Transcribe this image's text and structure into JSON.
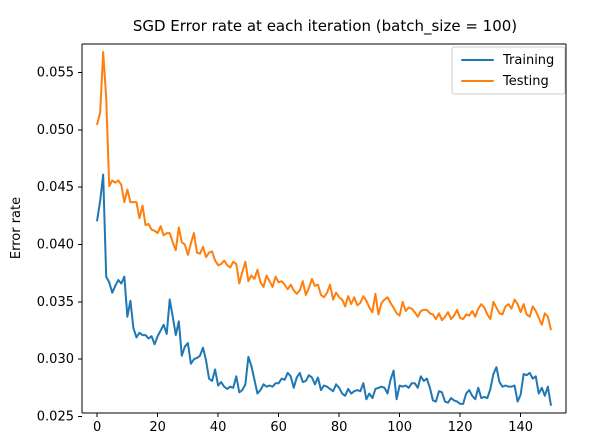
{
  "chart_data": {
    "type": "line",
    "title": "SGD Error rate at each iteration (batch_size = 100)",
    "xlabel": "",
    "ylabel": "Error rate",
    "xlim": [
      -5,
      155
    ],
    "ylim": [
      0.0253,
      0.0575
    ],
    "xticks": [
      0,
      20,
      40,
      60,
      80,
      100,
      120,
      140
    ],
    "yticks": [
      0.025,
      0.03,
      0.035,
      0.04,
      0.045,
      0.05,
      0.055
    ],
    "xtick_labels": [
      "0",
      "20",
      "40",
      "60",
      "80",
      "100",
      "120",
      "140"
    ],
    "ytick_labels": [
      "0.025",
      "0.030",
      "0.035",
      "0.040",
      "0.045",
      "0.050",
      "0.055"
    ],
    "grid": false,
    "legend_position": "top-right",
    "x": [
      0,
      1,
      2,
      3,
      4,
      5,
      6,
      7,
      8,
      9,
      10,
      11,
      12,
      13,
      14,
      15,
      16,
      17,
      18,
      19,
      20,
      21,
      22,
      23,
      24,
      25,
      26,
      27,
      28,
      29,
      30,
      31,
      32,
      33,
      34,
      35,
      36,
      37,
      38,
      39,
      40,
      41,
      42,
      43,
      44,
      45,
      46,
      47,
      48,
      49,
      50,
      51,
      52,
      53,
      54,
      55,
      56,
      57,
      58,
      59,
      60,
      61,
      62,
      63,
      64,
      65,
      66,
      67,
      68,
      69,
      70,
      71,
      72,
      73,
      74,
      75,
      76,
      77,
      78,
      79,
      80,
      81,
      82,
      83,
      84,
      85,
      86,
      87,
      88,
      89,
      90,
      91,
      92,
      93,
      94,
      95,
      96,
      97,
      98,
      99,
      100,
      101,
      102,
      103,
      104,
      105,
      106,
      107,
      108,
      109,
      110,
      111,
      112,
      113,
      114,
      115,
      116,
      117,
      118,
      119,
      120,
      121,
      122,
      123,
      124,
      125,
      126,
      127,
      128,
      129,
      130,
      131,
      132,
      133,
      134,
      135,
      136,
      137,
      138,
      139,
      140,
      141,
      142,
      143,
      144,
      145,
      146,
      147,
      148,
      149,
      150
    ],
    "series": [
      {
        "name": "Training",
        "color": "#1f77b4",
        "values": [
          0.0421,
          0.0438,
          0.0461,
          0.0372,
          0.0367,
          0.0358,
          0.0364,
          0.0369,
          0.0366,
          0.0372,
          0.0337,
          0.0351,
          0.0327,
          0.0319,
          0.0323,
          0.0321,
          0.0321,
          0.0318,
          0.032,
          0.0313,
          0.032,
          0.0325,
          0.033,
          0.0322,
          0.0352,
          0.0337,
          0.0321,
          0.0333,
          0.0303,
          0.0311,
          0.0314,
          0.0296,
          0.03,
          0.0301,
          0.0303,
          0.031,
          0.0299,
          0.0283,
          0.0281,
          0.0291,
          0.0277,
          0.028,
          0.0276,
          0.0274,
          0.0276,
          0.0275,
          0.0285,
          0.0271,
          0.0273,
          0.0278,
          0.0302,
          0.0294,
          0.0282,
          0.027,
          0.0273,
          0.0278,
          0.0276,
          0.0277,
          0.0276,
          0.0279,
          0.0279,
          0.0283,
          0.0282,
          0.0288,
          0.0285,
          0.0275,
          0.0284,
          0.0288,
          0.028,
          0.0281,
          0.0286,
          0.0284,
          0.0278,
          0.0284,
          0.0273,
          0.0277,
          0.0276,
          0.0274,
          0.0272,
          0.0278,
          0.0275,
          0.027,
          0.0268,
          0.0274,
          0.027,
          0.0272,
          0.0273,
          0.0272,
          0.0279,
          0.0265,
          0.027,
          0.0266,
          0.0274,
          0.0275,
          0.0276,
          0.0275,
          0.027,
          0.0282,
          0.029,
          0.0265,
          0.0277,
          0.0276,
          0.0277,
          0.0275,
          0.0279,
          0.0279,
          0.0275,
          0.0285,
          0.0281,
          0.0283,
          0.0275,
          0.0264,
          0.0263,
          0.0272,
          0.0271,
          0.0263,
          0.0262,
          0.0266,
          0.0264,
          0.0263,
          0.0261,
          0.0261,
          0.027,
          0.0273,
          0.0268,
          0.0265,
          0.0275,
          0.0266,
          0.0267,
          0.0266,
          0.0274,
          0.0287,
          0.0293,
          0.028,
          0.0276,
          0.0277,
          0.0276,
          0.0276,
          0.0277,
          0.0263,
          0.0269,
          0.0287,
          0.0286,
          0.0288,
          0.0283,
          0.0285,
          0.027,
          0.0275,
          0.0268,
          0.0276,
          0.026
        ]
      },
      {
        "name": "Testing",
        "color": "#ff7f0e",
        "values": [
          0.0505,
          0.0515,
          0.0568,
          0.0528,
          0.0451,
          0.0456,
          0.0454,
          0.0456,
          0.0452,
          0.0437,
          0.0448,
          0.0437,
          0.0437,
          0.0437,
          0.0423,
          0.0434,
          0.0417,
          0.0418,
          0.0413,
          0.0412,
          0.041,
          0.0416,
          0.0408,
          0.041,
          0.041,
          0.0402,
          0.0395,
          0.0415,
          0.0402,
          0.04,
          0.0391,
          0.0401,
          0.041,
          0.0393,
          0.0392,
          0.0398,
          0.0389,
          0.0393,
          0.0394,
          0.0386,
          0.0382,
          0.0383,
          0.0386,
          0.0382,
          0.038,
          0.0385,
          0.0383,
          0.0366,
          0.0376,
          0.0385,
          0.0368,
          0.0373,
          0.037,
          0.0378,
          0.0367,
          0.0363,
          0.0373,
          0.0368,
          0.0363,
          0.0372,
          0.0367,
          0.0368,
          0.0365,
          0.0361,
          0.0365,
          0.036,
          0.0357,
          0.036,
          0.0368,
          0.0356,
          0.0362,
          0.037,
          0.0364,
          0.0365,
          0.0356,
          0.0354,
          0.0358,
          0.0365,
          0.0352,
          0.0358,
          0.0354,
          0.0352,
          0.0346,
          0.0355,
          0.0348,
          0.0354,
          0.0347,
          0.0349,
          0.0355,
          0.0351,
          0.0345,
          0.0341,
          0.0357,
          0.0339,
          0.0349,
          0.0352,
          0.0354,
          0.0349,
          0.0345,
          0.034,
          0.0338,
          0.035,
          0.0342,
          0.0345,
          0.0344,
          0.0341,
          0.0337,
          0.0342,
          0.0343,
          0.0343,
          0.034,
          0.0339,
          0.0335,
          0.034,
          0.0334,
          0.0337,
          0.0341,
          0.0335,
          0.0338,
          0.0343,
          0.0336,
          0.0335,
          0.0339,
          0.0338,
          0.0342,
          0.0337,
          0.0344,
          0.0348,
          0.0345,
          0.0339,
          0.0335,
          0.035,
          0.0345,
          0.034,
          0.0339,
          0.0346,
          0.0348,
          0.0344,
          0.0352,
          0.0348,
          0.0341,
          0.0348,
          0.0339,
          0.0337,
          0.0346,
          0.0342,
          0.0336,
          0.033,
          0.034,
          0.0337,
          0.0326
        ]
      }
    ]
  }
}
